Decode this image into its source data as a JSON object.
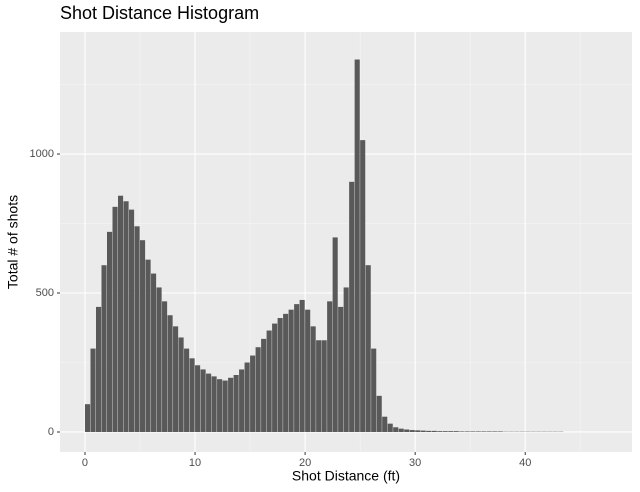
{
  "chart_data": {
    "type": "histogram",
    "title": "Shot Distance Histogram",
    "x_label": "Shot Distance (ft)",
    "y_label": "Total # of shots",
    "bins": [
      0,
      0.5,
      1,
      1.5,
      2,
      2.5,
      3,
      3.5,
      4,
      4.5,
      5,
      5.5,
      6,
      6.5,
      7,
      7.5,
      8,
      8.5,
      9,
      9.5,
      10,
      10.5,
      11,
      11.5,
      12,
      12.5,
      13,
      13.5,
      14,
      14.5,
      15,
      15.5,
      16,
      16.5,
      17,
      17.5,
      18,
      18.5,
      19,
      19.5,
      20,
      20.5,
      21,
      21.5,
      22,
      22.5,
      23,
      23.5,
      24,
      24.5,
      25,
      25.5,
      26,
      26.5,
      27,
      27.5,
      28,
      28.5,
      29,
      29.5,
      30,
      30.5,
      31,
      31.5,
      32,
      32.5,
      33,
      33.5,
      34,
      34.5,
      35,
      35.5,
      36,
      36.5,
      37,
      37.5,
      38,
      38.5,
      39,
      39.5,
      40,
      40.5,
      41,
      41.5,
      42,
      42.5,
      43,
      43.5,
      44,
      44.5,
      45,
      45.5,
      46,
      46.5,
      47
    ],
    "values": [
      100,
      300,
      450,
      600,
      720,
      810,
      850,
      830,
      800,
      740,
      690,
      620,
      570,
      520,
      470,
      420,
      380,
      340,
      300,
      265,
      240,
      225,
      210,
      200,
      190,
      185,
      195,
      205,
      225,
      250,
      275,
      305,
      335,
      365,
      390,
      410,
      425,
      440,
      460,
      475,
      440,
      380,
      330,
      330,
      470,
      700,
      450,
      520,
      900,
      1340,
      1050,
      600,
      300,
      130,
      55,
      30,
      17,
      12,
      9,
      7,
      6,
      5,
      4,
      4,
      3,
      3,
      3,
      3,
      2,
      2,
      2,
      2,
      2,
      2,
      2,
      2,
      1,
      1,
      1,
      1,
      1,
      1,
      1,
      1,
      1,
      1,
      1,
      0,
      0,
      0,
      0,
      0,
      0,
      0
    ],
    "color": "#595959",
    "xlim": [
      -2.27,
      49.7
    ],
    "ylim": [
      -72,
      1439
    ],
    "xticks": [
      0,
      10,
      20,
      30,
      40
    ],
    "yticks": [
      0,
      500,
      1000
    ],
    "x_minor_ticks": [
      5,
      15,
      25,
      35,
      45
    ],
    "y_minor_ticks": [
      250,
      750,
      1250
    ],
    "grid": true
  }
}
